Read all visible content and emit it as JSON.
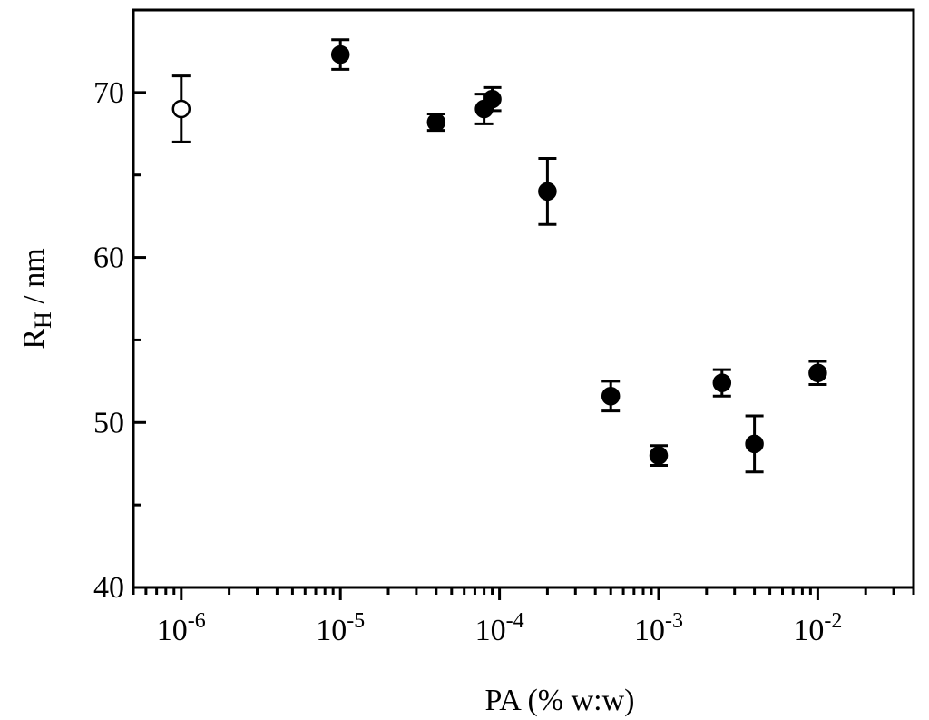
{
  "chart_data": {
    "type": "scatter",
    "xlabel": "PA (% w:w)",
    "ylabel": "R",
    "ylabel_subscript": "H",
    "ylabel_suffix": " / nm",
    "xscale": "log",
    "xlim": [
      5e-07,
      0.04
    ],
    "ylim": [
      40,
      75
    ],
    "x_ticks": [
      {
        "value": 1e-06,
        "base": "10",
        "exp": "-6"
      },
      {
        "value": 1e-05,
        "base": "10",
        "exp": "-5"
      },
      {
        "value": 0.0001,
        "base": "10",
        "exp": "-4"
      },
      {
        "value": 0.001,
        "base": "10",
        "exp": "-3"
      },
      {
        "value": 0.01,
        "base": "10",
        "exp": "-2"
      }
    ],
    "y_ticks": [
      40,
      50,
      60,
      70
    ],
    "y_minor_ticks": [
      45,
      55,
      65
    ],
    "grid": false,
    "series": [
      {
        "marker": "open-circle",
        "color": "#000000",
        "points": [
          {
            "x": 1e-06,
            "y": 69.0,
            "err": 2.0
          }
        ]
      },
      {
        "marker": "filled-circle",
        "color": "#000000",
        "points": [
          {
            "x": 1e-05,
            "y": 72.3,
            "err": 0.9
          },
          {
            "x": 4e-05,
            "y": 68.2,
            "err": 0.5
          },
          {
            "x": 8e-05,
            "y": 69.0,
            "err": 0.9
          },
          {
            "x": 9e-05,
            "y": 69.6,
            "err": 0.7
          },
          {
            "x": 0.0002,
            "y": 64.0,
            "err": 2.0
          },
          {
            "x": 0.0005,
            "y": 51.6,
            "err": 0.9
          },
          {
            "x": 0.001,
            "y": 48.0,
            "err": 0.6
          },
          {
            "x": 0.0025,
            "y": 52.4,
            "err": 0.8
          },
          {
            "x": 0.004,
            "y": 48.7,
            "err": 1.7
          },
          {
            "x": 0.01,
            "y": 53.0,
            "err": 0.7
          }
        ]
      }
    ]
  }
}
